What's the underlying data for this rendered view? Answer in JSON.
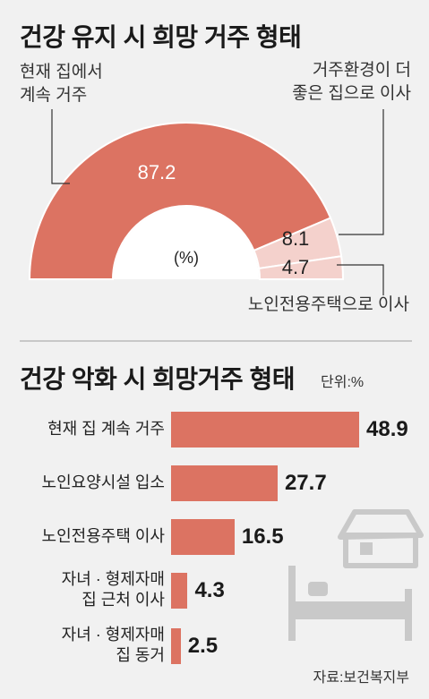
{
  "top": {
    "title": "건강 유지 시 희망 거주 형태",
    "unit": "(%)",
    "labels": {
      "home": [
        "현재 집에서",
        "계속 거주"
      ],
      "better": [
        "거주환경이 더",
        "좋은 집으로 이사"
      ],
      "senior": "노인전용주택으로 이사"
    }
  },
  "bottom": {
    "title": "건강 악화 시 희망거주 형태",
    "unit": "단위:%"
  },
  "source": "자료:보건복지부",
  "colors": {
    "main": "#dc7362",
    "light": "#f4d1cc",
    "bg": "#f1f1f1"
  },
  "chart_data": [
    {
      "type": "pie",
      "title": "건강 유지 시 희망 거주 형태",
      "slices": [
        {
          "label": "현재 집에서 계속 거주",
          "value": 87.2
        },
        {
          "label": "거주환경이 더 좋은 집으로 이사",
          "value": 8.1
        },
        {
          "label": "노인전용주택으로 이사",
          "value": 4.7
        }
      ],
      "unit": "(%)"
    },
    {
      "type": "bar",
      "title": "건강 악화 시 희망거주 형태",
      "categories": [
        [
          "현재 집 계속 거주"
        ],
        [
          "노인요양시설 입소"
        ],
        [
          "노인전용주택 이사"
        ],
        [
          "자녀 · 형제자매",
          "집 근처 이사"
        ],
        [
          "자녀 · 형제자매",
          "집 동거"
        ]
      ],
      "values": [
        48.9,
        27.7,
        16.5,
        4.3,
        2.5
      ],
      "unit": "단위:%",
      "xlim": [
        0,
        48.9
      ]
    }
  ]
}
